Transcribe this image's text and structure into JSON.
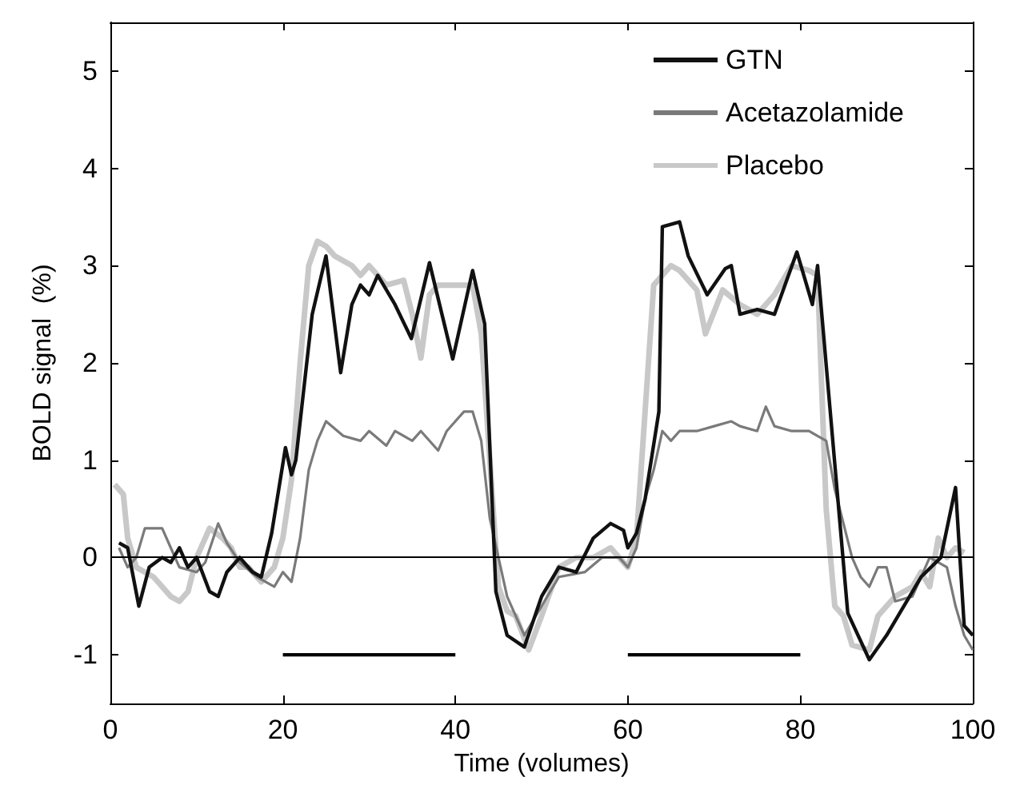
{
  "chart_data": {
    "type": "line",
    "xlabel": "Time (volumes)",
    "ylabel": "BOLD signal  (%)",
    "xlim": [
      0,
      100
    ],
    "ylim": [
      -1.5,
      5.5
    ],
    "xticks": [
      0,
      20,
      40,
      60,
      80,
      100
    ],
    "yticks": [
      -1,
      0,
      1,
      2,
      3,
      4,
      5
    ],
    "grid": false,
    "legend": "top right",
    "marker": "none",
    "line_style": "solid",
    "series": [
      {
        "name": "Placebo",
        "color": "#c8c8c8",
        "x": [
          0.5,
          1.5,
          2,
          3,
          5,
          7,
          8,
          9,
          10,
          11.5,
          13,
          14,
          15,
          16,
          17.5,
          19,
          20,
          21,
          22,
          23,
          24,
          25,
          26,
          28,
          29,
          30,
          32,
          34,
          35,
          36,
          37,
          38,
          40,
          42,
          43,
          44,
          45,
          46,
          47,
          48.5,
          50,
          52,
          54,
          56,
          58,
          60,
          61,
          62,
          63,
          65,
          66,
          68,
          69,
          71,
          73,
          75,
          77,
          79,
          81,
          82,
          83,
          84,
          85,
          86,
          88,
          89,
          91,
          93,
          94,
          95,
          96,
          97,
          98,
          99
        ],
        "values": [
          0.75,
          0.65,
          0.2,
          -0.1,
          -0.2,
          -0.4,
          -0.45,
          -0.35,
          0,
          0.3,
          0.2,
          0.1,
          -0.1,
          -0.1,
          -0.25,
          -0.1,
          0.2,
          0.8,
          2,
          3,
          3.25,
          3.2,
          3.1,
          3,
          2.9,
          3,
          2.8,
          2.85,
          2.5,
          2.05,
          2.7,
          2.8,
          2.8,
          2.8,
          2.3,
          1,
          -0.3,
          -0.55,
          -0.6,
          -0.95,
          -0.6,
          -0.1,
          0,
          0,
          0.1,
          -0.1,
          0.2,
          1.5,
          2.8,
          3,
          2.95,
          2.75,
          2.3,
          2.75,
          2.6,
          2.5,
          2.7,
          3,
          2.95,
          2.9,
          0.5,
          -0.5,
          -0.6,
          -0.9,
          -0.95,
          -0.6,
          -0.4,
          -0.3,
          -0.15,
          -0.3,
          0.2,
          0,
          0.1,
          0.05
        ]
      },
      {
        "name": "Acetazolamide",
        "color": "#7a7a7a",
        "x": [
          1,
          2,
          3,
          4,
          6,
          7,
          8,
          10,
          11,
          12.5,
          13.5,
          15,
          17,
          19,
          20,
          21,
          22,
          23,
          24,
          25,
          27,
          29,
          30,
          32,
          33,
          35,
          36,
          38,
          39,
          40,
          41,
          42,
          43,
          44,
          46,
          48,
          50,
          52,
          55,
          57,
          59,
          60,
          61,
          62,
          63,
          64,
          65,
          66,
          68,
          70,
          72,
          73,
          75,
          76,
          77,
          79,
          81,
          82,
          83,
          84,
          86,
          87,
          88,
          89,
          90,
          91,
          93,
          95,
          97,
          98,
          99,
          100
        ],
        "values": [
          0.1,
          -0.1,
          0,
          0.3,
          0.3,
          0.1,
          -0.1,
          -0.15,
          -0.05,
          0.35,
          0.15,
          -0.05,
          -0.2,
          -0.3,
          -0.15,
          -0.25,
          0.2,
          0.9,
          1.2,
          1.4,
          1.25,
          1.2,
          1.3,
          1.15,
          1.3,
          1.2,
          1.3,
          1.1,
          1.3,
          1.4,
          1.5,
          1.5,
          1.2,
          0.4,
          -0.4,
          -0.8,
          -0.5,
          -0.2,
          -0.15,
          0,
          0,
          -0.1,
          0.1,
          0.6,
          0.9,
          1.3,
          1.2,
          1.3,
          1.3,
          1.35,
          1.4,
          1.35,
          1.3,
          1.55,
          1.35,
          1.3,
          1.3,
          1.25,
          1.2,
          0.7,
          0,
          -0.2,
          -0.3,
          -0.1,
          -0.1,
          -0.45,
          -0.4,
          0,
          -0.1,
          -0.5,
          -0.8,
          -0.95
        ]
      },
      {
        "name": "GTN",
        "color": "#111111",
        "x": [
          1,
          2,
          3.3,
          4.5,
          6,
          7,
          8,
          9,
          10,
          11.5,
          12.5,
          13.5,
          15,
          16.5,
          17.5,
          18.7,
          20.3,
          21,
          21.5,
          23.4,
          25,
          26.7,
          28,
          29,
          30,
          31,
          33,
          34.9,
          37,
          39.7,
          42,
          43.4,
          44.7,
          46,
          48,
          50,
          52,
          54,
          56,
          58,
          59.5,
          60,
          61,
          62,
          63.6,
          64,
          66,
          67,
          69.2,
          71.3,
          72,
          73,
          75,
          77,
          79.6,
          81.4,
          82,
          85.5,
          88,
          90,
          92,
          94,
          96.3,
          98,
          99,
          100
        ],
        "values": [
          0.15,
          0.1,
          -0.5,
          -0.1,
          0,
          -0.05,
          0.1,
          -0.1,
          0,
          -0.35,
          -0.4,
          -0.15,
          0,
          -0.15,
          -0.2,
          0.25,
          1.13,
          0.85,
          1,
          2.5,
          3.1,
          1.9,
          2.6,
          2.8,
          2.7,
          2.9,
          2.6,
          2.25,
          3.03,
          2.04,
          2.95,
          2.4,
          -0.35,
          -0.8,
          -0.92,
          -0.4,
          -0.1,
          -0.15,
          0.2,
          0.35,
          0.28,
          0.1,
          0.25,
          0.6,
          1.5,
          3.4,
          3.45,
          3.1,
          2.7,
          2.97,
          3,
          2.5,
          2.55,
          2.5,
          3.14,
          2.6,
          3,
          -0.57,
          -1.05,
          -0.8,
          -0.5,
          -0.2,
          0,
          0.72,
          -0.7,
          -0.8
        ]
      },
      {
        "color": "#000000",
        "x": [
          20,
          40,
          50,
          60,
          80
        ],
        "values": [
          -1,
          -1,
          null,
          -1,
          -1
        ]
      }
    ],
    "ref_lines": [
      {
        "axis": "y",
        "value": 0,
        "color": "#000000"
      }
    ]
  }
}
